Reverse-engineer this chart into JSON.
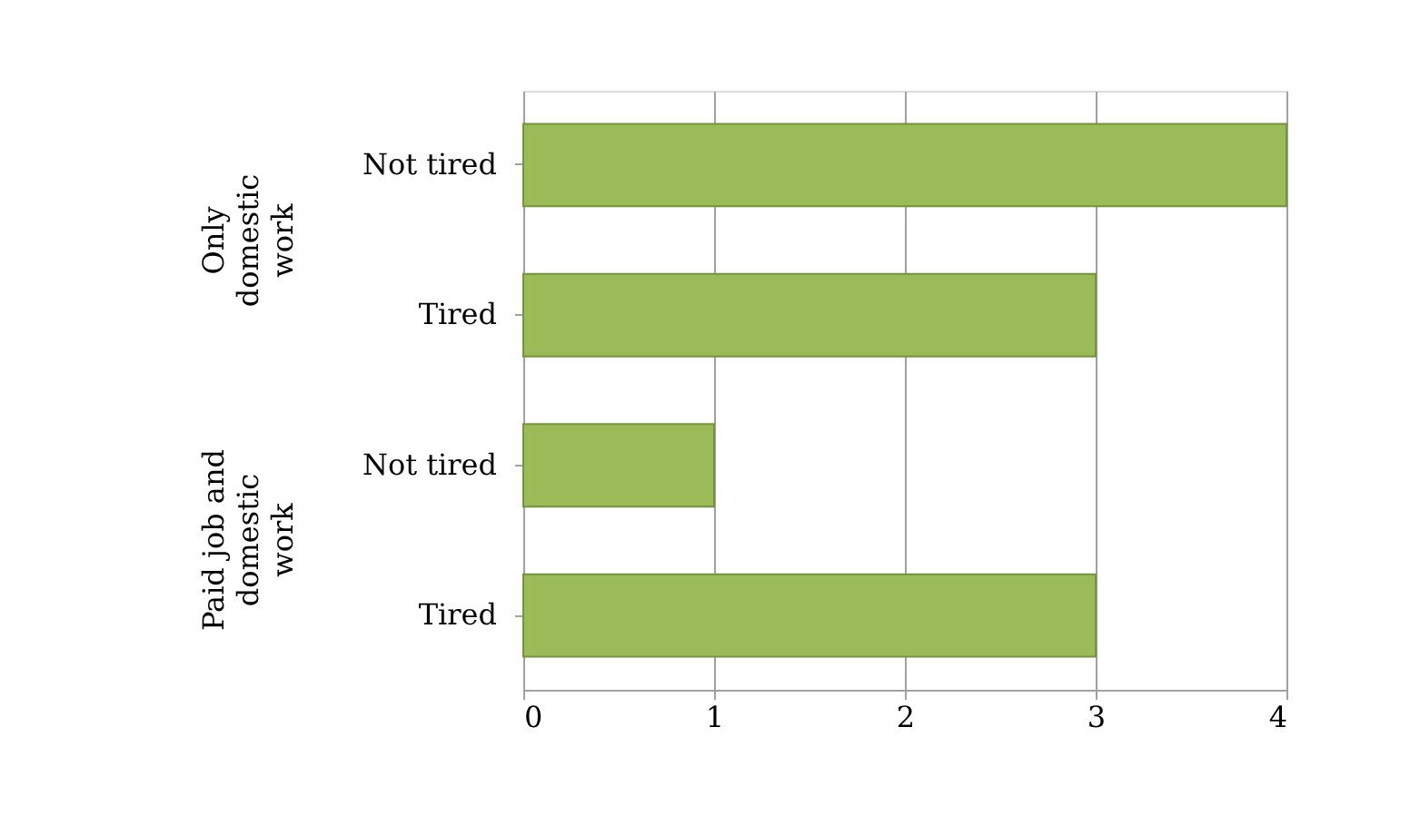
{
  "chart_data": {
    "type": "bar",
    "orientation": "horizontal",
    "categories": [
      "Not tired",
      "Tired",
      "Not tired",
      "Tired"
    ],
    "values": [
      4,
      3,
      1,
      3
    ],
    "color": "#9bbb59",
    "xlim": [
      0,
      4
    ],
    "xticks": [
      0,
      1,
      2,
      3,
      4
    ],
    "grid": "x",
    "annotations": [
      "Only domestic work",
      "Paid job and domestic work"
    ]
  }
}
